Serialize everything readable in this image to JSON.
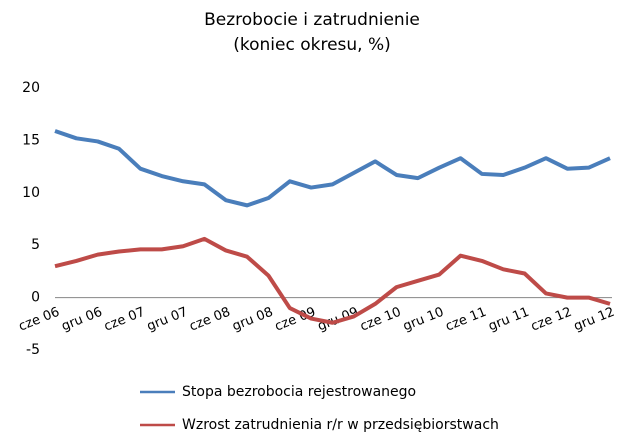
{
  "chart_data": {
    "type": "line",
    "title": "Bezrobocie i zatrudnienie",
    "subtitle": "(koniec okresu, %)",
    "categories": [
      "cze 06",
      null,
      "gru 06",
      null,
      "cze 07",
      null,
      "gru 07",
      null,
      "cze 08",
      null,
      "gru 08",
      null,
      "cze 09",
      null,
      "gru 09",
      null,
      "cze 10",
      null,
      "gru 10",
      null,
      "cze 11",
      null,
      "gru 11",
      null,
      "cze 12",
      null,
      "gru 12"
    ],
    "series": [
      {
        "name": "Stopa bezrobocia rejestrowanego",
        "color": "#4a7ebb",
        "values": [
          15.9,
          15.2,
          14.9,
          14.2,
          12.3,
          11.6,
          11.1,
          10.8,
          9.3,
          8.8,
          9.5,
          11.1,
          10.5,
          10.8,
          11.9,
          13.0,
          11.7,
          11.4,
          12.4,
          13.3,
          11.8,
          11.7,
          12.4,
          13.3,
          12.3,
          12.4,
          13.3
        ]
      },
      {
        "name": "Wzrost zatrudnienia r/r w przedsiębiorstwach",
        "color": "#be4b48",
        "values": [
          3.0,
          3.5,
          4.1,
          4.4,
          4.6,
          4.6,
          4.9,
          5.6,
          4.5,
          3.9,
          2.1,
          -1.0,
          -2.0,
          -2.4,
          -1.8,
          -0.6,
          1.0,
          1.6,
          2.2,
          4.0,
          3.5,
          2.7,
          2.3,
          0.4,
          0.0,
          0.0,
          -0.6
        ]
      }
    ],
    "ylim": [
      -5,
      20
    ],
    "yticks": [
      -5,
      0,
      5,
      10,
      15,
      20
    ],
    "grid": false
  }
}
